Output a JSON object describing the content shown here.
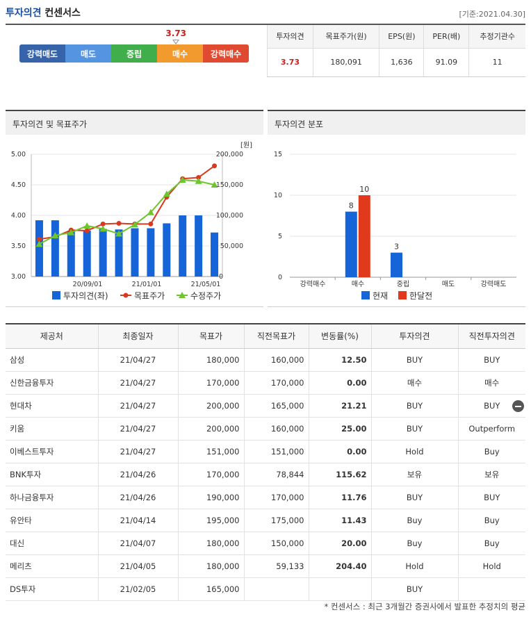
{
  "header": {
    "title_highlight": "투자의견",
    "title_rest": "컨센서스",
    "base_date": "[기준:2021.04.30]"
  },
  "gauge": {
    "value_label": "3.73",
    "value": 3.73,
    "segments": [
      "강력매도",
      "매도",
      "중립",
      "매수",
      "강력매수"
    ]
  },
  "summary": {
    "headers": [
      "투자의견",
      "목표주가(원)",
      "EPS(원)",
      "PER(배)",
      "추정기관수"
    ],
    "values": [
      "3.73",
      "180,091",
      "1,636",
      "91.09",
      "11"
    ]
  },
  "left_panel": {
    "title": "투자의견 및 목표주가",
    "unit": "[원]",
    "y_left_ticks": [
      "5.00",
      "4.50",
      "4.00",
      "3.50",
      "3.00"
    ],
    "y_right_ticks": [
      "200,000",
      "150,000",
      "100,000",
      "50,000",
      "0"
    ],
    "x_ticks": [
      "20/09/01",
      "21/01/01",
      "21/05/01"
    ],
    "legend": [
      "투자의견(좌)",
      "목표주가",
      "수정주가"
    ]
  },
  "right_panel": {
    "title": "투자의견 분포",
    "y_ticks": [
      "15",
      "10",
      "5",
      "0"
    ],
    "categories": [
      "강력매수",
      "매수",
      "중립",
      "매도",
      "강력매도"
    ],
    "legend": [
      "현재",
      "한달전"
    ]
  },
  "chart_data": [
    {
      "type": "bar",
      "title": "투자의견 및 목표주가",
      "y_left_range": [
        3.0,
        5.0
      ],
      "y_right_range": [
        0,
        200000
      ],
      "x_tick_labels": [
        "20/09/01",
        "21/01/01",
        "21/05/01"
      ],
      "series": [
        {
          "name": "투자의견(좌)",
          "type": "bar",
          "axis": "left",
          "color": "#1565d8",
          "values": [
            3.92,
            3.92,
            3.75,
            3.75,
            3.78,
            3.77,
            3.79,
            3.79,
            3.87,
            4.0,
            4.0,
            3.72
          ]
        },
        {
          "name": "목표주가",
          "type": "line",
          "axis": "right",
          "color": "#d73a1f",
          "values": [
            61000,
            65000,
            76000,
            75000,
            86000,
            87000,
            86000,
            86000,
            130000,
            160000,
            162000,
            181000
          ]
        },
        {
          "name": "수정주가",
          "type": "line",
          "axis": "right",
          "color": "#6fc52e",
          "values": [
            53000,
            67000,
            72000,
            83000,
            78000,
            70000,
            85000,
            105000,
            135000,
            158000,
            156000,
            150000
          ]
        }
      ]
    },
    {
      "type": "bar",
      "title": "투자의견 분포",
      "categories": [
        "강력매수",
        "매수",
        "중립",
        "매도",
        "강력매도"
      ],
      "ylim": [
        0,
        15
      ],
      "series": [
        {
          "name": "현재",
          "color": "#1565d8",
          "values": [
            0,
            8,
            3,
            0,
            0
          ]
        },
        {
          "name": "한달전",
          "color": "#e0391b",
          "values": [
            0,
            10,
            0,
            0,
            0
          ]
        }
      ],
      "data_labels": [
        "8",
        "10",
        "3"
      ]
    }
  ],
  "table": {
    "headers": [
      "제공처",
      "최종일자",
      "목표가",
      "직전목표가",
      "변동률(%)",
      "투자의견",
      "직전투자의견"
    ],
    "rows": [
      [
        "삼성",
        "21/04/27",
        "180,000",
        "160,000",
        "12.50",
        "BUY",
        "BUY"
      ],
      [
        "신한금융투자",
        "21/04/27",
        "170,000",
        "170,000",
        "0.00",
        "매수",
        "매수"
      ],
      [
        "현대차",
        "21/04/27",
        "200,000",
        "165,000",
        "21.21",
        "BUY",
        "BUY"
      ],
      [
        "키움",
        "21/04/27",
        "200,000",
        "160,000",
        "25.00",
        "BUY",
        "Outperform"
      ],
      [
        "이베스트투자",
        "21/04/27",
        "151,000",
        "151,000",
        "0.00",
        "Hold",
        "Buy"
      ],
      [
        "BNK투자",
        "21/04/26",
        "170,000",
        "78,844",
        "115.62",
        "보유",
        "보유"
      ],
      [
        "하나금융투자",
        "21/04/26",
        "190,000",
        "170,000",
        "11.76",
        "BUY",
        "BUY"
      ],
      [
        "유안타",
        "21/04/14",
        "195,000",
        "175,000",
        "11.43",
        "Buy",
        "Buy"
      ],
      [
        "대신",
        "21/04/07",
        "180,000",
        "150,000",
        "20.00",
        "Buy",
        "Buy"
      ],
      [
        "메리츠",
        "21/04/05",
        "180,000",
        "59,133",
        "204.40",
        "Hold",
        "Hold"
      ],
      [
        "DS투자",
        "21/02/05",
        "165,000",
        "",
        "",
        "BUY",
        ""
      ]
    ]
  },
  "footnote": "* 컨센서스 : 최근 3개월간 증권사에서 발표한 추정치의 평균"
}
